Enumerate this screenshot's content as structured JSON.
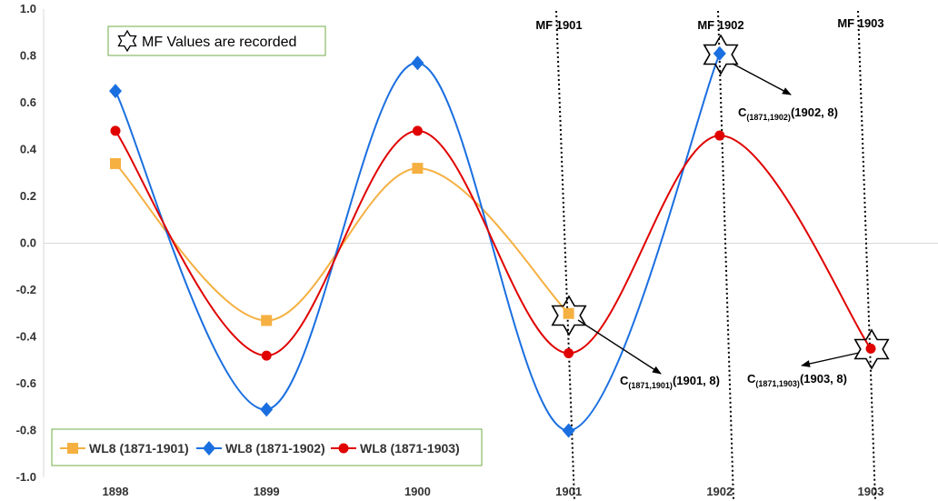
{
  "chart_data": {
    "type": "line",
    "title": "",
    "xlabel": "",
    "ylabel": "",
    "categories": [
      "1898",
      "1899",
      "1900",
      "1901",
      "1902",
      "1903"
    ],
    "ylim": [
      -1.0,
      1.0
    ],
    "y_ticks": [
      "1.0",
      "0.8",
      "0.6",
      "0.4",
      "0.2",
      "0.0",
      "-0.2",
      "-0.4",
      "-0.6",
      "-0.8",
      "-1.0"
    ],
    "y_tick_values": [
      1.0,
      0.8,
      0.6,
      0.4,
      0.2,
      0.0,
      -0.2,
      -0.4,
      -0.6,
      -0.8,
      -1.0
    ],
    "grid": false,
    "legend_position": "bottom-left",
    "series": [
      {
        "name": "WL8 (1871-1901)",
        "color": "#f5b041",
        "marker": "square",
        "values": [
          0.34,
          -0.33,
          0.32,
          -0.3,
          null,
          null
        ]
      },
      {
        "name": "WL8 (1871-1902)",
        "color": "#1a6fe0",
        "marker": "diamond",
        "values": [
          0.65,
          -0.71,
          0.77,
          -0.8,
          0.81,
          null
        ]
      },
      {
        "name": "WL8 (1871-1903)",
        "color": "#e00000",
        "marker": "circle",
        "values": [
          0.48,
          -0.48,
          0.48,
          -0.47,
          0.46,
          -0.45
        ]
      }
    ],
    "mf_lines": [
      {
        "label": "MF 1901"
      },
      {
        "label": "MF 1902"
      },
      {
        "label": "MF 1903"
      }
    ],
    "info_box": {
      "text": "MF Values are recorded",
      "icon": "six-point-star-icon"
    },
    "annotations": [
      {
        "prefix": "C",
        "subscript": "(1871,1901)",
        "suffix": "(1901, 8)"
      },
      {
        "prefix": "C",
        "subscript": "(1871,1902)",
        "suffix": "(1902, 8)"
      },
      {
        "prefix": "C",
        "subscript": "(1871,1903)",
        "suffix": "(1903, 8)"
      }
    ]
  }
}
